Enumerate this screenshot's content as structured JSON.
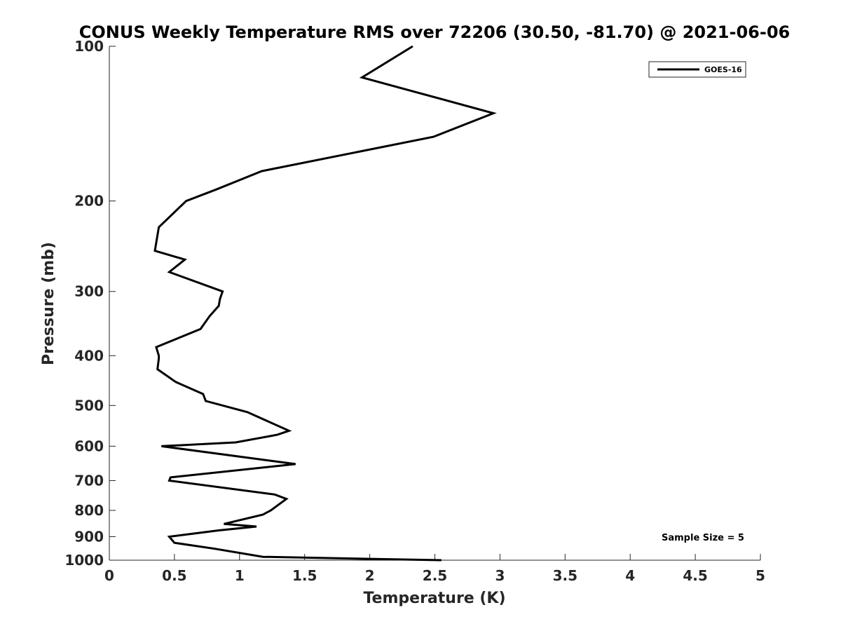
{
  "chart_data": {
    "type": "line",
    "title": "CONUS Weekly Temperature RMS over 72206 (30.50, -81.70) @ 2021-06-06",
    "xlabel": "Temperature (K)",
    "ylabel": "Pressure (mb)",
    "xlim": [
      0,
      5
    ],
    "ylim": [
      100,
      1000
    ],
    "y_scale": "log",
    "y_reversed": true,
    "grid": false,
    "legend_position": "top-right",
    "x_ticks": [
      0,
      0.5,
      1,
      1.5,
      2,
      2.5,
      3,
      3.5,
      4,
      4.5,
      5
    ],
    "x_tick_labels": [
      "0",
      "0.5",
      "1",
      "1.5",
      "2",
      "2.5",
      "3",
      "3.5",
      "4",
      "4.5",
      "5"
    ],
    "y_ticks": [
      100,
      200,
      300,
      400,
      500,
      600,
      700,
      800,
      900,
      1000
    ],
    "y_tick_labels": [
      "100",
      "200",
      "300",
      "400",
      "500",
      "600",
      "700",
      "800",
      "900",
      "1000"
    ],
    "series": [
      {
        "name": "GOES-16",
        "color": "#000000",
        "temperature": [
          2.33,
          1.94,
          2.95,
          2.49,
          1.17,
          0.82,
          0.59,
          0.38,
          0.35,
          0.58,
          0.46,
          0.87,
          0.85,
          0.84,
          0.77,
          0.7,
          0.36,
          0.38,
          0.38,
          0.37,
          0.51,
          0.72,
          0.74,
          1.06,
          1.38,
          1.29,
          0.97,
          0.4,
          1.43,
          0.47,
          0.46,
          1.27,
          1.36,
          1.24,
          1.18,
          0.88,
          1.13,
          0.84,
          0.46,
          0.5,
          0.81,
          1.18,
          2.55
        ],
        "pressure": [
          100,
          115,
          135,
          150,
          175,
          190,
          200,
          225,
          250,
          260,
          275,
          300,
          310,
          320,
          335,
          355,
          385,
          400,
          405,
          425,
          450,
          475,
          490,
          515,
          560,
          570,
          590,
          600,
          650,
          690,
          700,
          745,
          760,
          800,
          815,
          850,
          860,
          875,
          900,
          925,
          950,
          985,
          1000
        ]
      }
    ],
    "annotations": [
      "Sample Size = 5"
    ]
  }
}
